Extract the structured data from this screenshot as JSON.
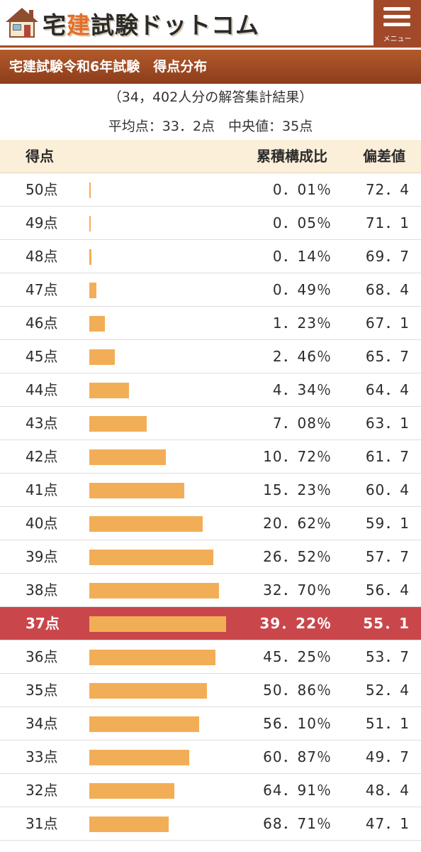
{
  "header": {
    "logo_text_1": "宅",
    "logo_text_2": "建",
    "logo_text_3": "試験ドットコム",
    "menu_label": "メニュー",
    "logo_icon": "house-icon",
    "menu_icon": "hamburger-icon"
  },
  "section": {
    "title": "宅建試験令和6年試験　得点分布"
  },
  "summary": {
    "respondents": "（34，402人分の解答集計結果）",
    "stats": "平均点：33．2点　中央値：35点"
  },
  "table": {
    "headers": {
      "score": "得点",
      "ratio": "累積構成比",
      "deviation": "偏差値"
    },
    "rows": [
      {
        "score": "50点",
        "ratio": "0．01％",
        "deviation": "72．4",
        "share": 0.01
      },
      {
        "score": "49点",
        "ratio": "0．05％",
        "deviation": "71．1",
        "share": 0.04
      },
      {
        "score": "48点",
        "ratio": "0．14％",
        "deviation": "69．7",
        "share": 0.09
      },
      {
        "score": "47点",
        "ratio": "0．49％",
        "deviation": "68．4",
        "share": 0.35
      },
      {
        "score": "46点",
        "ratio": "1．23％",
        "deviation": "67．1",
        "share": 0.74
      },
      {
        "score": "45点",
        "ratio": "2．46％",
        "deviation": "65．7",
        "share": 1.23
      },
      {
        "score": "44点",
        "ratio": "4．34％",
        "deviation": "64．4",
        "share": 1.88
      },
      {
        "score": "43点",
        "ratio": "7．08％",
        "deviation": "63．1",
        "share": 2.74
      },
      {
        "score": "42点",
        "ratio": "10．72％",
        "deviation": "61．7",
        "share": 3.64
      },
      {
        "score": "41点",
        "ratio": "15．23％",
        "deviation": "60．4",
        "share": 4.51
      },
      {
        "score": "40点",
        "ratio": "20．62％",
        "deviation": "59．1",
        "share": 5.39
      },
      {
        "score": "39点",
        "ratio": "26．52％",
        "deviation": "57．7",
        "share": 5.9
      },
      {
        "score": "38点",
        "ratio": "32．70％",
        "deviation": "56．4",
        "share": 6.18
      },
      {
        "score": "37点",
        "ratio": "39．22％",
        "deviation": "55．1",
        "share": 6.52,
        "highlight": true
      },
      {
        "score": "36点",
        "ratio": "45．25％",
        "deviation": "53．7",
        "share": 6.03
      },
      {
        "score": "35点",
        "ratio": "50．86％",
        "deviation": "52．4",
        "share": 5.61
      },
      {
        "score": "34点",
        "ratio": "56．10％",
        "deviation": "51．1",
        "share": 5.24
      },
      {
        "score": "33点",
        "ratio": "60．87％",
        "deviation": "49．7",
        "share": 4.77
      },
      {
        "score": "32点",
        "ratio": "64．91％",
        "deviation": "48．4",
        "share": 4.04
      },
      {
        "score": "31点",
        "ratio": "68．71％",
        "deviation": "47．1",
        "share": 3.8
      }
    ]
  },
  "colors": {
    "bar": "#f2ae57",
    "highlight_row": "#c9474b",
    "header_brown": "#a2492a",
    "table_header_bg": "#fcefd9"
  }
}
